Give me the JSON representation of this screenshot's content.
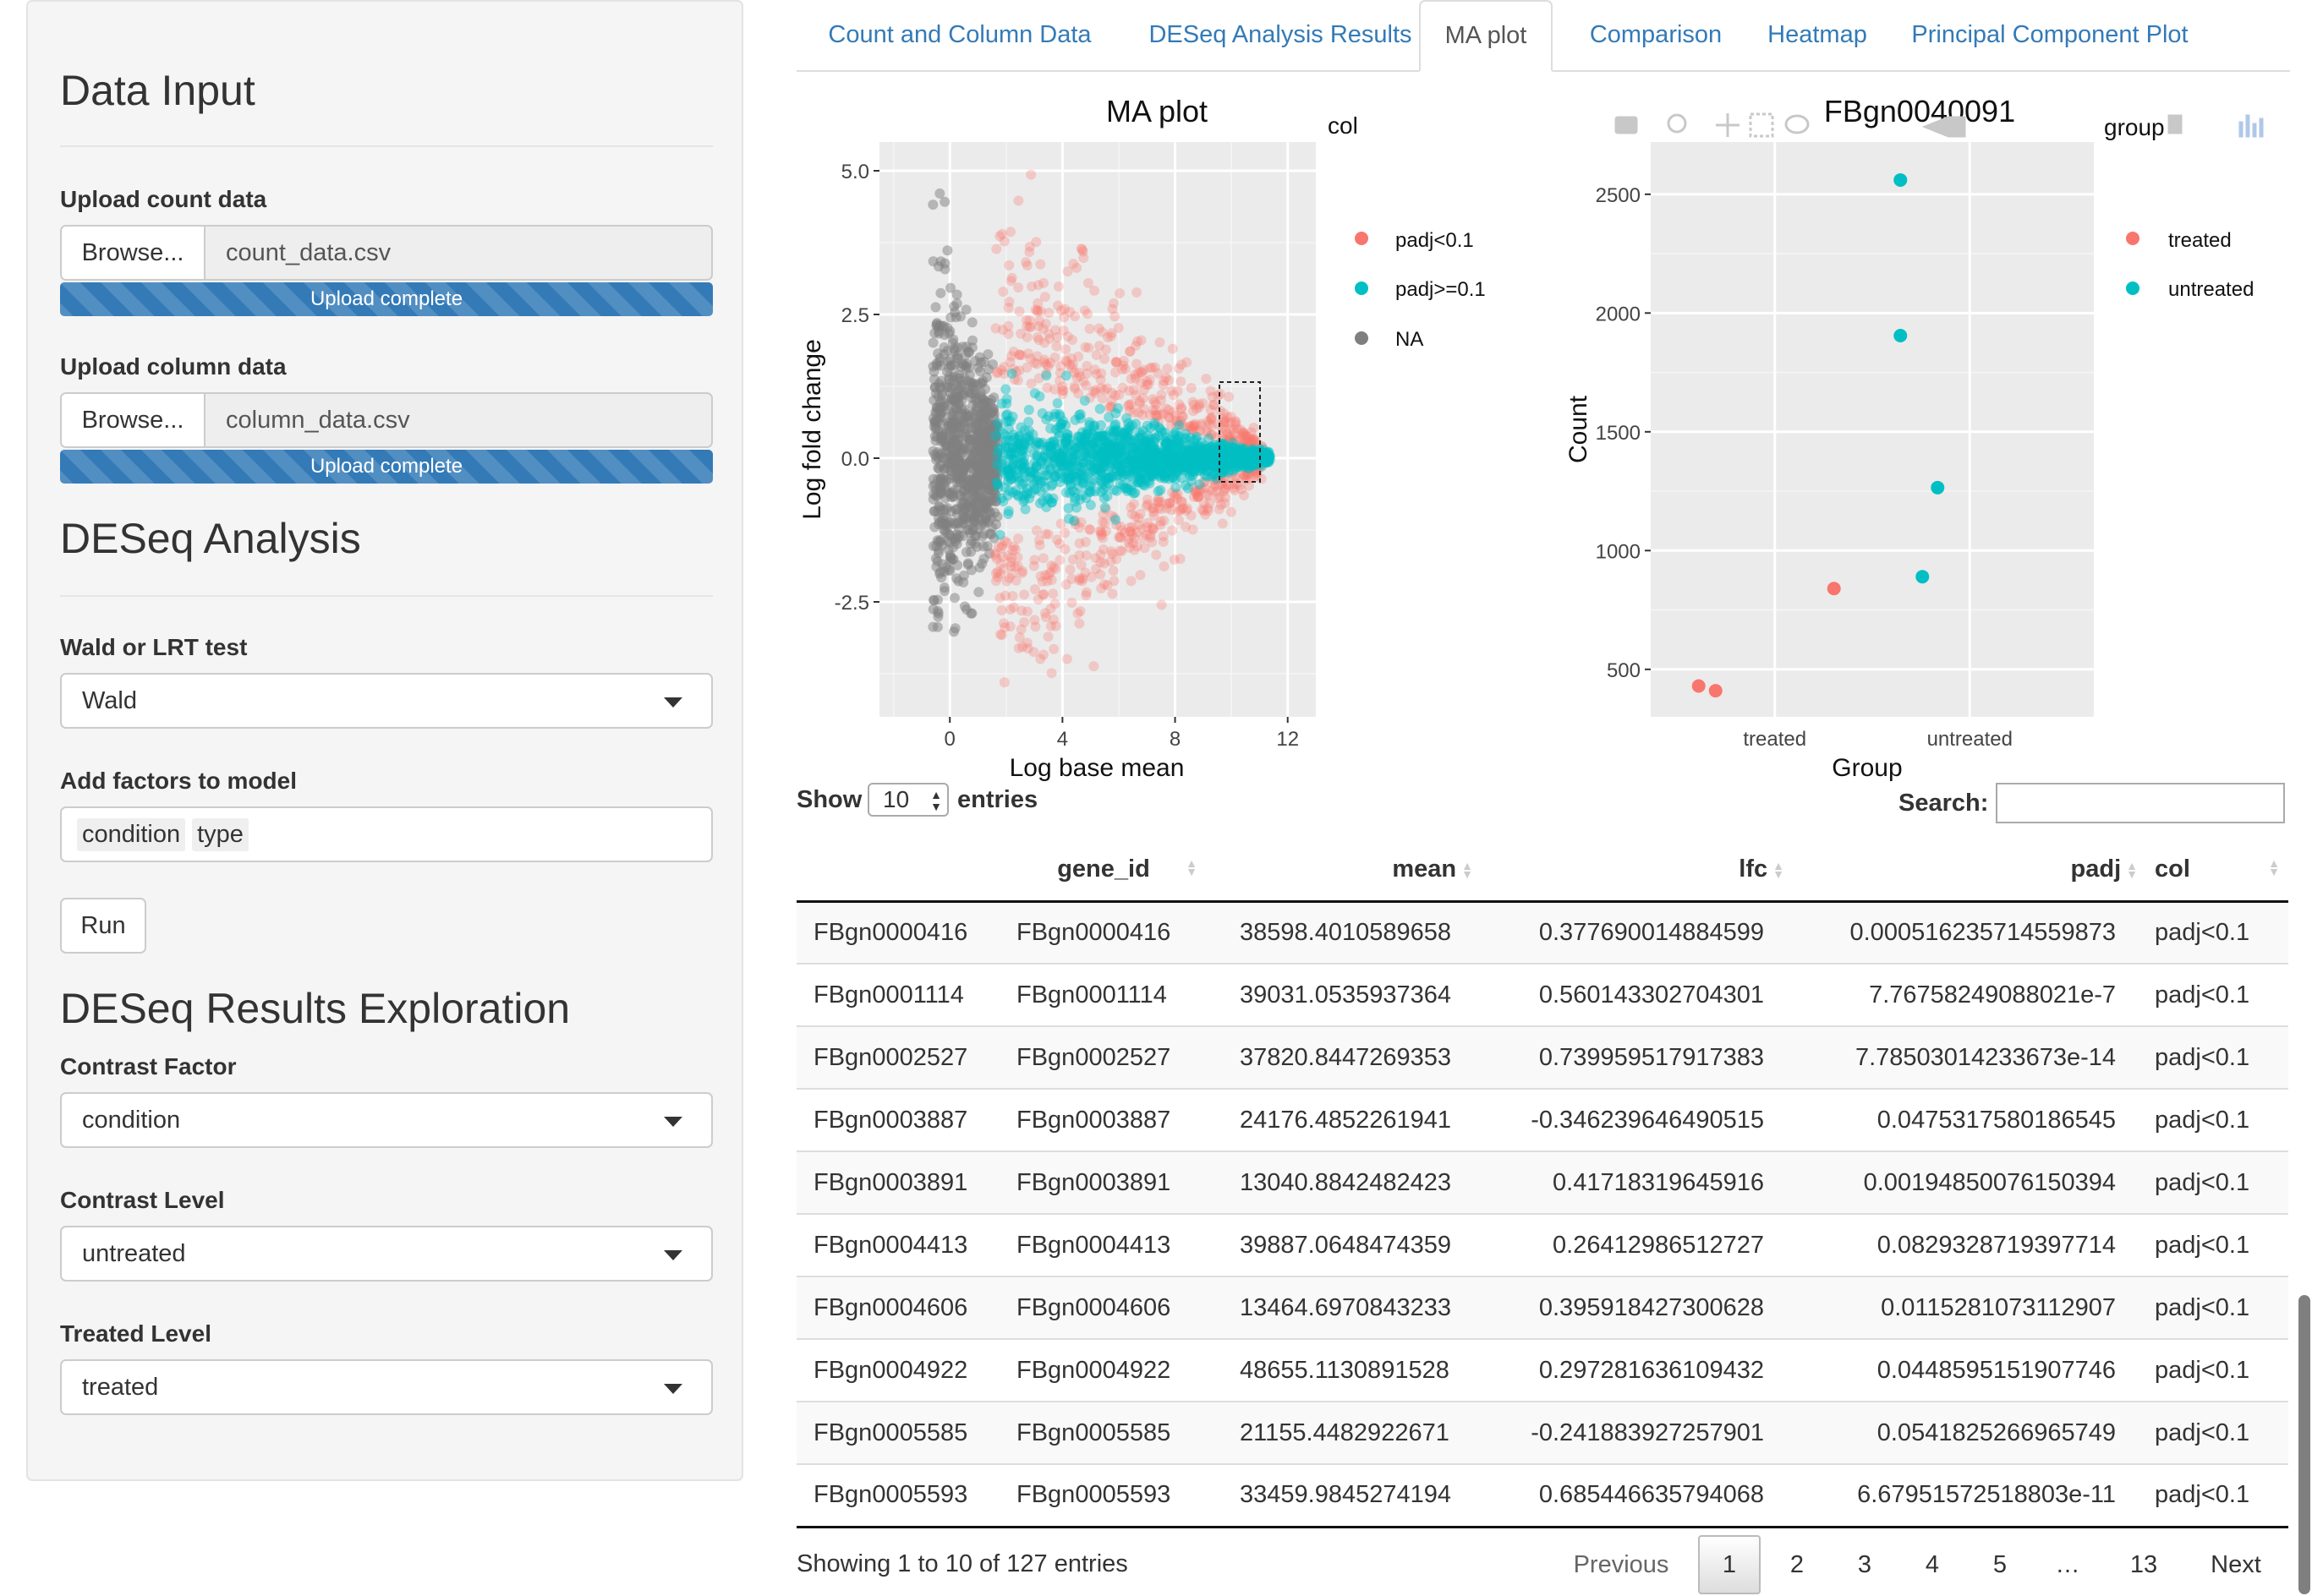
{
  "sidebar": {
    "data_input_title": "Data Input",
    "upload_count_label": "Upload count data",
    "count_browse": "Browse...",
    "count_file": "count_data.csv",
    "count_progress": "Upload complete",
    "upload_column_label": "Upload column data",
    "column_browse": "Browse...",
    "column_file": "column_data.csv",
    "column_progress": "Upload complete",
    "deseq_title": "DESeq Analysis",
    "test_label": "Wald or LRT test",
    "test_value": "Wald",
    "factors_label": "Add factors to model",
    "factors": [
      "condition",
      "type"
    ],
    "run_label": "Run",
    "explore_title": "DESeq Results Exploration",
    "contrast_factor_label": "Contrast Factor",
    "contrast_factor_value": "condition",
    "contrast_level_label": "Contrast Level",
    "contrast_level_value": "untreated",
    "treated_level_label": "Treated Level",
    "treated_level_value": "treated"
  },
  "tabs": [
    "Count and Column Data",
    "DESeq Analysis Results",
    "MA plot",
    "Comparison",
    "Heatmap",
    "Principal Component Plot"
  ],
  "active_tab": "MA plot",
  "ma_plot": {
    "title": "MA plot",
    "xlabel": "Log base mean",
    "ylabel": "Log fold change",
    "xticks": [
      "0",
      "4",
      "8",
      "12"
    ],
    "yticks": [
      "5.0",
      "2.5",
      "0.0",
      "-2.5"
    ],
    "legend_title": "col",
    "legend": [
      {
        "label": "padj<0.1",
        "color": "#f8766d"
      },
      {
        "label": "padj>=0.1",
        "color": "#00bfc4"
      },
      {
        "label": "NA",
        "color": "#7f7f7f"
      }
    ]
  },
  "count_plot": {
    "title": "FBgn0040091",
    "xlabel": "Group",
    "ylabel": "Count",
    "xticks": [
      "treated",
      "untreated"
    ],
    "yticks": [
      "2500",
      "2000",
      "1500",
      "1000",
      "500"
    ],
    "legend_title": "group",
    "legend": [
      {
        "label": "treated",
        "color": "#f8766d"
      },
      {
        "label": "untreated",
        "color": "#00bfc4"
      }
    ]
  },
  "chart_data": [
    {
      "type": "scatter",
      "title": "MA plot",
      "xlabel": "Log base mean",
      "ylabel": "Log fold change",
      "xlim": [
        -2.5,
        13
      ],
      "ylim": [
        -4.5,
        5.5
      ],
      "series": [
        {
          "name": "padj<0.1",
          "color": "#f8766d"
        },
        {
          "name": "padj>=0.1",
          "color": "#00bfc4"
        },
        {
          "name": "NA",
          "color": "#7f7f7f"
        }
      ]
    },
    {
      "type": "scatter",
      "title": "FBgn0040091",
      "xlabel": "Group",
      "ylabel": "Count",
      "categories": [
        "treated",
        "untreated"
      ],
      "ylim": [
        300,
        2720
      ],
      "series": [
        {
          "name": "treated",
          "points": [
            {
              "x": "treated",
              "y": 840
            },
            {
              "x": "treated",
              "y": 430
            },
            {
              "x": "treated",
              "y": 410
            }
          ]
        },
        {
          "name": "untreated",
          "points": [
            {
              "x": "untreated",
              "y": 2560
            },
            {
              "x": "untreated",
              "y": 1905
            },
            {
              "x": "untreated",
              "y": 1265
            },
            {
              "x": "untreated",
              "y": 890
            }
          ]
        }
      ]
    }
  ],
  "table": {
    "show_label": "Show",
    "length_value": "10",
    "entries_label": "entries",
    "search_label": "Search:",
    "columns": [
      "",
      "gene_id",
      "mean",
      "lfc",
      "padj",
      "col"
    ],
    "rows": [
      [
        "FBgn0000416",
        "FBgn0000416",
        "38598.4010589658",
        "0.377690014884599",
        "0.000516235714559873",
        "padj<0.1"
      ],
      [
        "FBgn0001114",
        "FBgn0001114",
        "39031.0535937364",
        "0.560143302704301",
        "7.76758249088021e-7",
        "padj<0.1"
      ],
      [
        "FBgn0002527",
        "FBgn0002527",
        "37820.8447269353",
        "0.739959517917383",
        "7.78503014233673e-14",
        "padj<0.1"
      ],
      [
        "FBgn0003887",
        "FBgn0003887",
        "24176.4852261941",
        "-0.346239646490515",
        "0.0475317580186545",
        "padj<0.1"
      ],
      [
        "FBgn0003891",
        "FBgn0003891",
        "13040.8842482423",
        "0.41718319645916",
        "0.00194850076150394",
        "padj<0.1"
      ],
      [
        "FBgn0004413",
        "FBgn0004413",
        "39887.0648474359",
        "0.26412986512727",
        "0.0829328719397714",
        "padj<0.1"
      ],
      [
        "FBgn0004606",
        "FBgn0004606",
        "13464.6970843233",
        "0.395918427300628",
        "0.0115281073112907",
        "padj<0.1"
      ],
      [
        "FBgn0004922",
        "FBgn0004922",
        "48655.1130891528",
        "0.297281636109432",
        "0.0448595151907746",
        "padj<0.1"
      ],
      [
        "FBgn0005585",
        "FBgn0005585",
        "21155.4482922671",
        "-0.241883927257901",
        "0.0541825266965749",
        "padj<0.1"
      ],
      [
        "FBgn0005593",
        "FBgn0005593",
        "33459.9845274194",
        "0.685446635794068",
        "6.67951572518803e-11",
        "padj<0.1"
      ]
    ],
    "info": "Showing 1 to 10 of 127 entries",
    "pagination": {
      "previous": "Previous",
      "pages": [
        "1",
        "2",
        "3",
        "4",
        "5",
        "…",
        "13"
      ],
      "current": "1",
      "next": "Next"
    }
  }
}
